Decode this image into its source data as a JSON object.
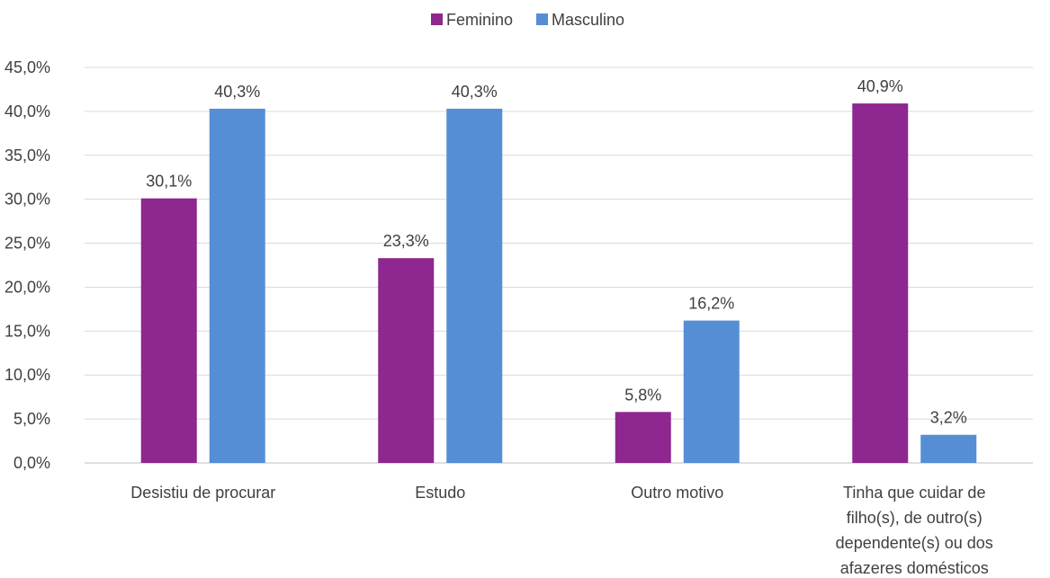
{
  "chart_data": {
    "type": "bar",
    "categories": [
      [
        "Desistiu de procurar"
      ],
      [
        "Estudo"
      ],
      [
        "Outro motivo"
      ],
      [
        "Tinha que cuidar de",
        "filho(s), de outro(s)",
        "dependente(s) ou dos",
        "afazeres domésticos"
      ]
    ],
    "series": [
      {
        "name": "Feminino",
        "color": "#8E278F",
        "values": [
          30.1,
          23.3,
          5.8,
          40.9
        ],
        "labels": [
          "30,1%",
          "23,3%",
          "5,8%",
          "40,9%"
        ]
      },
      {
        "name": "Masculino",
        "color": "#558ED5",
        "values": [
          40.3,
          40.3,
          16.2,
          3.2
        ],
        "labels": [
          "40,3%",
          "40,3%",
          "16,2%",
          "3,2%"
        ]
      }
    ],
    "yticks": [
      0,
      5,
      10,
      15,
      20,
      25,
      30,
      35,
      40,
      45
    ],
    "ytick_labels": [
      "0,0%",
      "5,0%",
      "10,0%",
      "15,0%",
      "20,0%",
      "25,0%",
      "30,0%",
      "35,0%",
      "40,0%",
      "45,0%"
    ],
    "ylim": [
      0,
      45
    ],
    "grid": true,
    "legend_position": "top-center",
    "title": "",
    "xlabel": "",
    "ylabel": ""
  }
}
